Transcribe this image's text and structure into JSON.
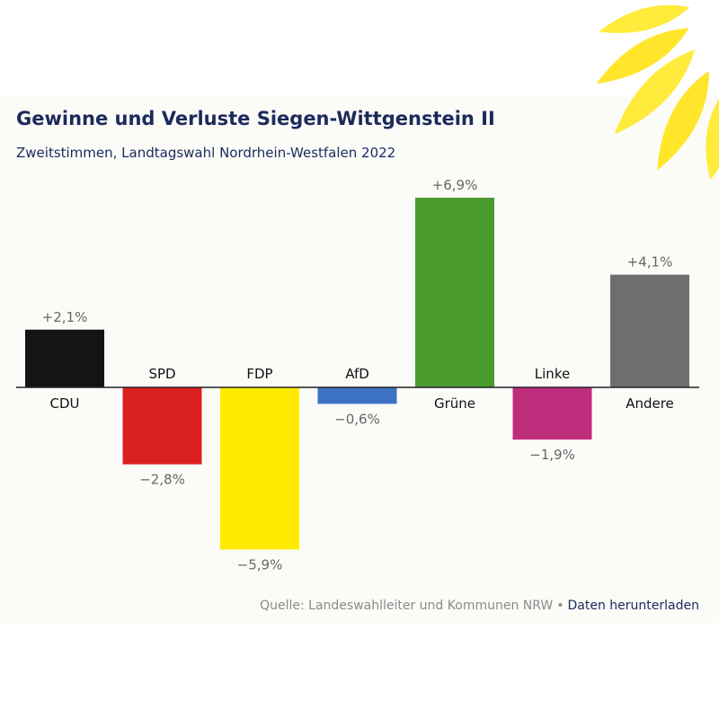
{
  "title": "Gewinne und Verluste Siegen-Wittgenstein II",
  "subtitle": "Zweitstimmen, Landtagswahl Nordrhein-Westfalen 2022",
  "footer": {
    "source": "Quelle: Landeswahlleiter und Kommunen NRW",
    "separator": "•",
    "download": "Daten herunterladen"
  },
  "chart_data": {
    "type": "bar",
    "title": "Gewinne und Verluste Siegen-Wittgenstein II",
    "subtitle": "Zweitstimmen, Landtagswahl Nordrhein-Westfalen 2022",
    "categories": [
      "CDU",
      "SPD",
      "FDP",
      "AfD",
      "Grüne",
      "Linke",
      "Andere"
    ],
    "values": [
      2.1,
      -2.8,
      -5.9,
      -0.6,
      6.9,
      -1.9,
      4.1
    ],
    "value_labels": [
      "+2,1%",
      "−2,8%",
      "−5,9%",
      "−0,6%",
      "+6,9%",
      "−1,9%",
      "+4,1%"
    ],
    "colors": [
      "#141414",
      "#da2120",
      "#ffeb00",
      "#3c72c5",
      "#4a9a2e",
      "#be2c7c",
      "#6d6e70"
    ],
    "ylim": [
      -5.9,
      6.9
    ],
    "grid": false,
    "legend": "none",
    "unit": "%"
  }
}
